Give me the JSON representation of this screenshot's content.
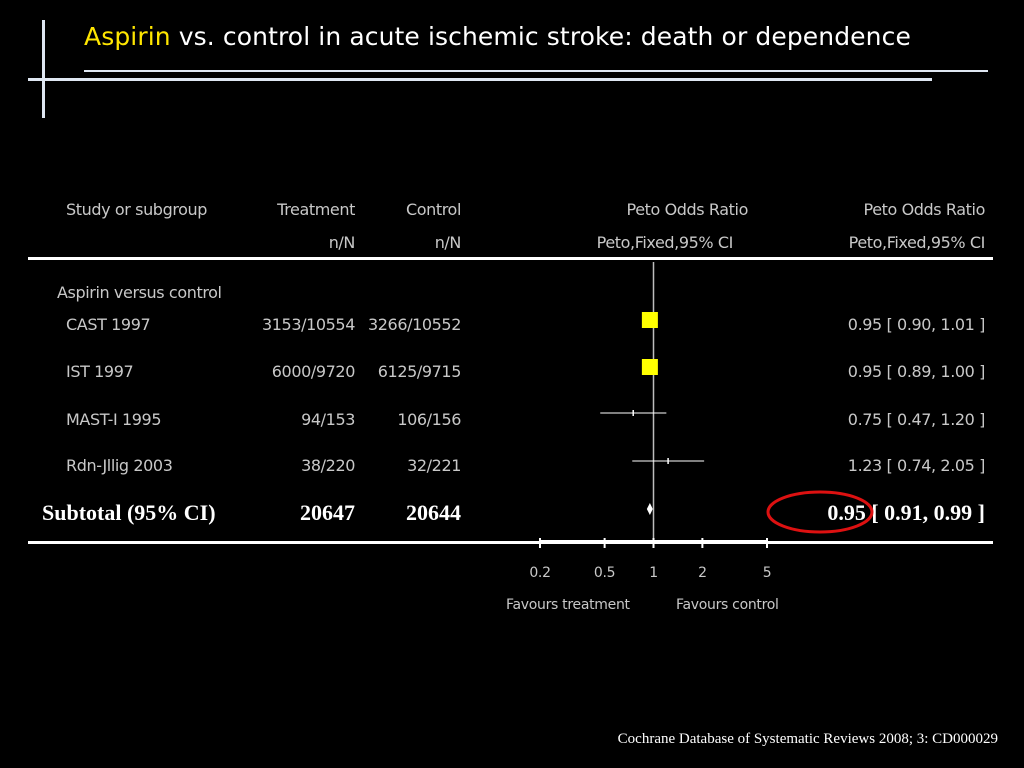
{
  "slide": {
    "title_highlight": "Aspirin",
    "title_rest": " vs. control in acute ischemic stroke: death or dependence",
    "citation": "Cochrane Database of Systematic Reviews 2008; 3: CD000029"
  },
  "table": {
    "headers": {
      "study": "Study or subgroup",
      "treatment": "Treatment",
      "treatment_sub": "n/N",
      "control": "Control",
      "control_sub": "n/N",
      "plot": "Peto Odds Ratio",
      "plot_sub": "Peto,Fixed,95% CI",
      "ratio": "Peto Odds Ratio",
      "ratio_sub": "Peto,Fixed,95% CI"
    },
    "group_label": "Aspirin versus control",
    "subtotal": {
      "label": "Subtotal (95% CI)",
      "treatment": "20647",
      "control": "20644",
      "ratio_text": "0.95 [ 0.91, 0.99 ]"
    }
  },
  "chart_data": {
    "type": "forest",
    "scale": "log",
    "xlim": [
      0.2,
      5
    ],
    "ticks": [
      "0.2",
      "0.5",
      "1",
      "2",
      "5"
    ],
    "tick_values": [
      0.2,
      0.5,
      1,
      2,
      5
    ],
    "null_value": 1,
    "favours_left": "Favours treatment",
    "favours_right": "Favours control",
    "colors": {
      "weighted_marker": "#ffff00",
      "line": "#ffffff",
      "highlight_circle": "#dd1111"
    },
    "studies": [
      {
        "name": "CAST 1997",
        "treatment": "3153/10554",
        "control": "3266/10552",
        "or": 0.95,
        "lo": 0.9,
        "hi": 1.01,
        "ci_text": "0.95 [ 0.90, 1.01 ]",
        "marker": "square"
      },
      {
        "name": "IST 1997",
        "treatment": "6000/9720",
        "control": "6125/9715",
        "or": 0.95,
        "lo": 0.89,
        "hi": 1.0,
        "ci_text": "0.95 [ 0.89, 1.00 ]",
        "marker": "square"
      },
      {
        "name": "MAST-I 1995",
        "treatment": "94/153",
        "control": "106/156",
        "or": 0.75,
        "lo": 0.47,
        "hi": 1.2,
        "ci_text": "0.75 [ 0.47, 1.20 ]",
        "marker": "tick"
      },
      {
        "name": "Rdn-Jllig 2003",
        "treatment": "38/220",
        "control": "32/221",
        "or": 1.23,
        "lo": 0.74,
        "hi": 2.05,
        "ci_text": "1.23 [ 0.74, 2.05 ]",
        "marker": "tick"
      }
    ],
    "pooled": {
      "or": 0.95,
      "lo": 0.91,
      "hi": 0.99,
      "highlighted": true
    }
  }
}
